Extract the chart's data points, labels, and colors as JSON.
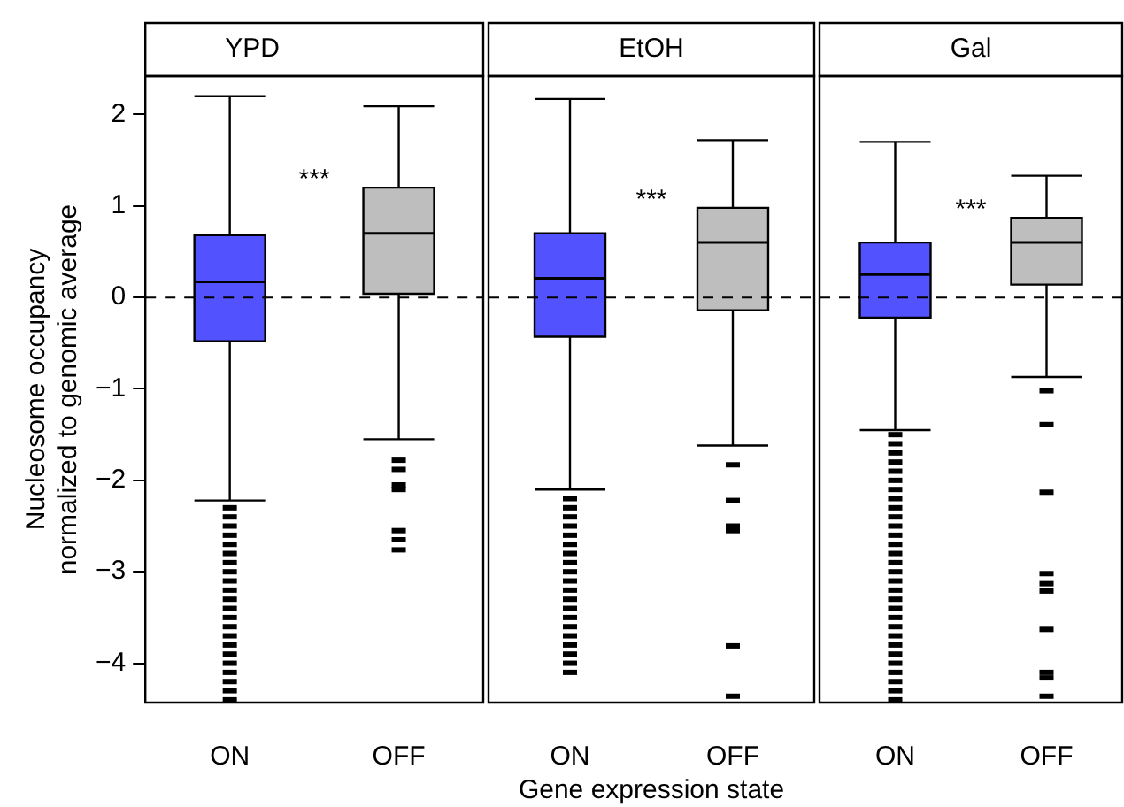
{
  "chart_data": [
    {
      "type": "box",
      "title": "YPD",
      "ylabel": "Nucleosome occupancy\nnormalized to genomic average",
      "categories": [
        "ON",
        "OFF"
      ],
      "colors": [
        "#5252ff",
        "#bebebe"
      ],
      "boxes": [
        {
          "low": -2.22,
          "q1": -0.48,
          "median": 0.17,
          "q3": 0.68,
          "high": 2.2,
          "outliers": [
            -2.3,
            -2.4,
            -2.5,
            -2.6,
            -2.7,
            -2.8,
            -2.9,
            -3.0,
            -3.1,
            -3.2,
            -3.3,
            -3.4,
            -3.5,
            -3.6,
            -3.7,
            -3.8,
            -3.9,
            -4.0,
            -4.1,
            -4.2,
            -4.3,
            -4.4
          ]
        },
        {
          "low": -1.55,
          "q1": 0.04,
          "median": 0.7,
          "q3": 1.2,
          "high": 2.09,
          "outliers": [
            -1.78,
            -1.88,
            -2.05,
            -2.1,
            -2.55,
            -2.65,
            -2.76
          ]
        }
      ],
      "ylim": [
        -4.43,
        2.42
      ],
      "yticks": [
        {
          "value": -4,
          "label": "−4"
        },
        {
          "value": -3,
          "label": "−3"
        },
        {
          "value": -2,
          "label": "−2"
        },
        {
          "value": -1,
          "label": "−1"
        },
        0,
        1,
        2
      ],
      "ref_lines": [
        {
          "axis": "y",
          "value": 0,
          "line_style": "dashed"
        }
      ],
      "annotations": [
        "***"
      ]
    },
    {
      "type": "box",
      "title": "EtOH",
      "xlabel": "Gene expression state",
      "categories": [
        "ON",
        "OFF"
      ],
      "colors": [
        "#5252ff",
        "#bebebe"
      ],
      "boxes": [
        {
          "low": -2.1,
          "q1": -0.43,
          "median": 0.21,
          "q3": 0.7,
          "high": 2.17,
          "outliers": [
            -2.2,
            -2.3,
            -2.4,
            -2.5,
            -2.6,
            -2.7,
            -2.8,
            -2.9,
            -3.0,
            -3.1,
            -3.2,
            -3.3,
            -3.4,
            -3.5,
            -3.6,
            -3.7,
            -3.8,
            -3.9,
            -4.0,
            -4.1
          ]
        },
        {
          "low": -1.62,
          "q1": -0.14,
          "median": 0.6,
          "q3": 0.98,
          "high": 1.72,
          "outliers": [
            -1.83,
            -2.22,
            -2.5,
            -2.55,
            -3.81,
            -4.36
          ]
        }
      ],
      "ylim": [
        -4.43,
        2.42
      ],
      "tick_labels": "x",
      "ref_lines": [
        {
          "axis": "y",
          "value": 0,
          "line_style": "dashed"
        }
      ],
      "annotations": [
        "***"
      ]
    },
    {
      "type": "box",
      "title": "Gal",
      "categories": [
        "ON",
        "OFF"
      ],
      "colors": [
        "#5252ff",
        "#bebebe"
      ],
      "boxes": [
        {
          "low": -1.45,
          "q1": -0.22,
          "median": 0.25,
          "q3": 0.6,
          "high": 1.7,
          "outliers": [
            -1.5,
            -1.6,
            -1.7,
            -1.8,
            -1.9,
            -2.0,
            -2.1,
            -2.2,
            -2.3,
            -2.4,
            -2.5,
            -2.6,
            -2.7,
            -2.8,
            -2.9,
            -3.0,
            -3.1,
            -3.2,
            -3.3,
            -3.4,
            -3.5,
            -3.6,
            -3.7,
            -3.8,
            -3.9,
            -4.0,
            -4.1,
            -4.2,
            -4.3,
            -4.4
          ]
        },
        {
          "low": -0.87,
          "q1": 0.14,
          "median": 0.6,
          "q3": 0.87,
          "high": 1.33,
          "outliers": [
            -1.02,
            -1.39,
            -2.13,
            -3.02,
            -3.13,
            -3.21,
            -3.63,
            -4.1,
            -4.16,
            -4.36
          ]
        }
      ],
      "ylim": [
        -4.43,
        2.42
      ],
      "tick_labels": "x",
      "ref_lines": [
        {
          "axis": "y",
          "value": 0,
          "line_style": "dashed"
        }
      ],
      "annotations": [
        "***"
      ]
    }
  ]
}
